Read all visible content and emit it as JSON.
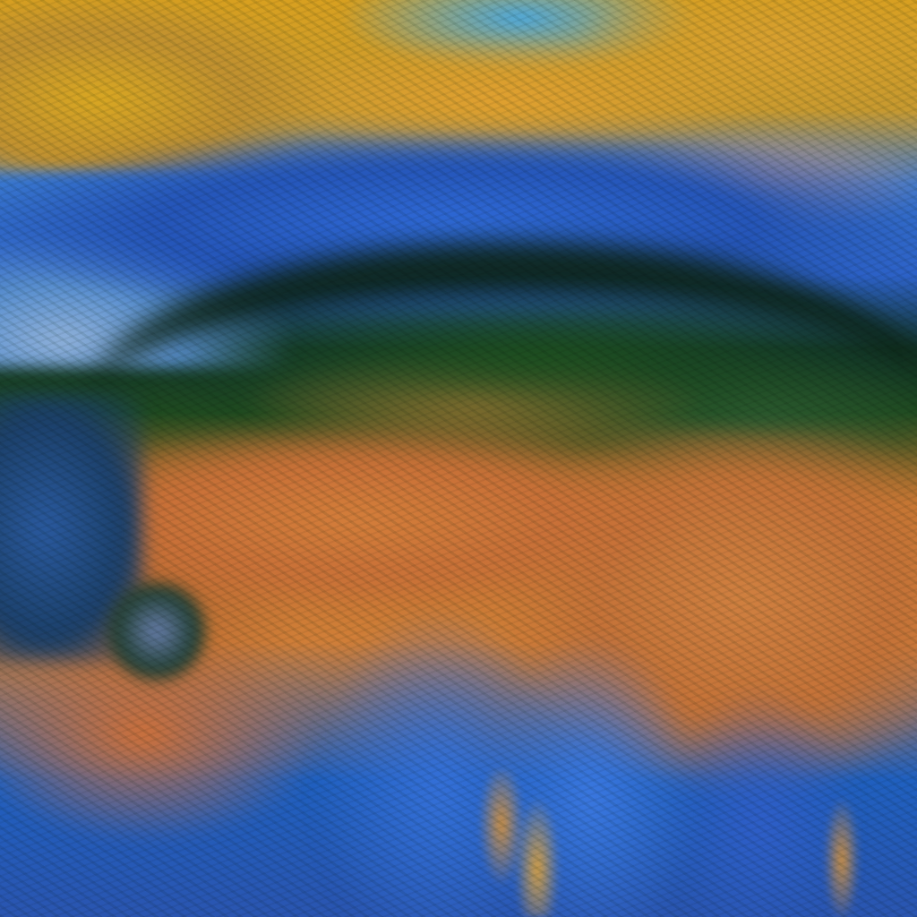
{
  "image": {
    "kind": "false-color satellite image of a storm system",
    "colors": {
      "cloud_tops_orange": "#d07e38",
      "cloud_yellow": "#d9a722",
      "ocean_blue": "#2f6ad8",
      "light_blue_haze": "#8fb0d8",
      "vegetation_green": "#1e5020",
      "dark_band": "#0c2312"
    }
  }
}
